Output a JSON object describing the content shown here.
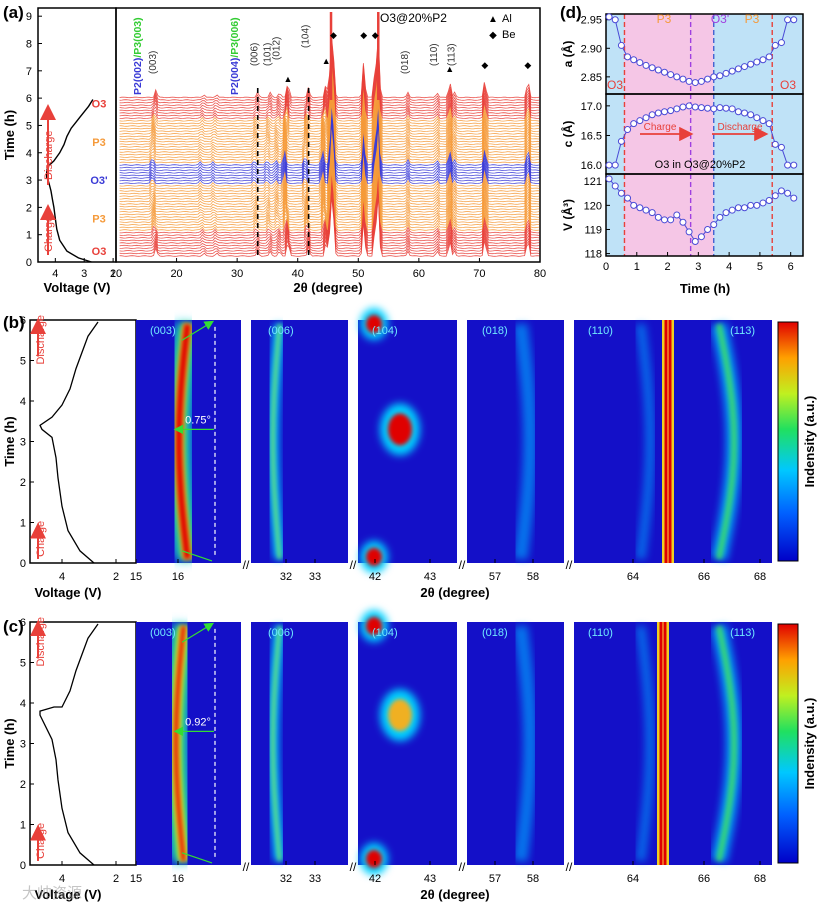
{
  "panel_labels": [
    "(a)",
    "(b)",
    "(c)",
    "(d)"
  ],
  "watermark": "大帅资源",
  "colors": {
    "red": "#e8403a",
    "orange": "#f59a3a",
    "blue": "#3a3ad6",
    "green": "#33cc33",
    "pink": "#f5c6e6",
    "sky": "#bfe2f7",
    "point": "#4a4ad6"
  },
  "chart_data": [
    {
      "id": "a_voltage",
      "type": "line",
      "xlabel": "Voltage (V)",
      "ylabel": "Time (h)",
      "xlim": [
        4.6,
        1.9
      ],
      "ylim": [
        0,
        9.3
      ],
      "x_ticks": [
        "4",
        "3",
        "2"
      ],
      "y_ticks": [
        "0",
        "1",
        "2",
        "3",
        "4",
        "5",
        "6",
        "7",
        "8",
        "9"
      ],
      "phase_labels": [
        {
          "text": "O3",
          "y": 0.4,
          "color": "red"
        },
        {
          "text": "P3",
          "y": 1.6,
          "color": "orange"
        },
        {
          "text": "O3'",
          "y": 3.0,
          "color": "blue"
        },
        {
          "text": "P3",
          "y": 4.4,
          "color": "orange"
        },
        {
          "text": "O3",
          "y": 5.8,
          "color": "red"
        }
      ],
      "arrow_labels": [
        "Charge",
        "Discharge"
      ],
      "x": [
        2.75,
        3.2,
        3.6,
        3.85,
        3.95,
        4.0,
        4.05,
        4.1,
        4.15,
        4.2,
        4.25,
        4.3,
        4.3,
        4.28,
        4.25,
        4.05,
        3.85,
        3.7,
        3.6,
        3.45,
        3.3,
        3.15,
        3.0,
        2.85,
        2.7
      ],
      "y": [
        0.0,
        0.15,
        0.4,
        0.8,
        1.2,
        1.6,
        2.0,
        2.3,
        2.6,
        2.8,
        3.0,
        3.1,
        3.3,
        3.4,
        3.5,
        3.7,
        4.0,
        4.3,
        4.6,
        4.9,
        5.1,
        5.3,
        5.5,
        5.7,
        5.95
      ]
    },
    {
      "id": "a_xrd",
      "type": "line",
      "title": "O3@20%P2",
      "xlabel": "2θ (degree)",
      "xlim": [
        10,
        80
      ],
      "x_ticks": [
        "10",
        "20",
        "30",
        "40",
        "50",
        "60",
        "70",
        "80"
      ],
      "legend": [
        {
          "symbol": "▲",
          "label": "Al"
        },
        {
          "symbol": "◆",
          "label": "Be"
        }
      ],
      "series_count": 62,
      "color_bands": [
        {
          "from": 0,
          "to": 0.9,
          "color": "red"
        },
        {
          "from": 0.9,
          "to": 2.7,
          "color": "orange"
        },
        {
          "from": 2.7,
          "to": 3.5,
          "color": "blue"
        },
        {
          "from": 3.5,
          "to": 5.2,
          "color": "orange"
        },
        {
          "from": 5.2,
          "to": 6.0,
          "color": "red"
        }
      ],
      "reflections": [
        {
          "label": "(003)",
          "two_theta": 16.6
        },
        {
          "label": "(006)",
          "two_theta": 33.4
        },
        {
          "label": "(101)",
          "two_theta": 35.5
        },
        {
          "label": "(012)",
          "two_theta": 37.0
        },
        {
          "label": "(104)",
          "two_theta": 41.8
        },
        {
          "label": "(018)",
          "two_theta": 58.2
        },
        {
          "label": "(110)",
          "two_theta": 63.0
        },
        {
          "label": "(113)",
          "two_theta": 65.9
        }
      ],
      "p2_labels": [
        {
          "blue": "P2(002)",
          "green": "/P3(003)",
          "two_theta": 15.8
        },
        {
          "blue": "P2(004)",
          "green": "/P3(006)",
          "two_theta": 31.8
        }
      ],
      "al_peaks": [
        38.4,
        44.7,
        65.1
      ],
      "be_peaks": [
        45.9,
        50.9,
        52.8,
        70.9,
        78.0
      ]
    },
    {
      "id": "d_lattice",
      "type": "scatter",
      "xlabel": "Time (h)",
      "x_ticks": [
        "0",
        "1",
        "2",
        "3",
        "4",
        "5",
        "6"
      ],
      "xlim": [
        0,
        6.4
      ],
      "subtitle": "O3 in O3@20%P2",
      "phase_labels": [
        "O3",
        "P3",
        "O3'",
        "P3",
        "O3"
      ],
      "phase_bounds": [
        0.6,
        2.75,
        3.5,
        5.4
      ],
      "arrows": [
        "Charge",
        "Discharge"
      ],
      "time": [
        0.1,
        0.3,
        0.5,
        0.7,
        0.9,
        1.1,
        1.3,
        1.5,
        1.7,
        1.9,
        2.1,
        2.3,
        2.5,
        2.7,
        2.9,
        3.1,
        3.3,
        3.5,
        3.7,
        3.9,
        4.1,
        4.3,
        4.5,
        4.7,
        4.9,
        5.1,
        5.3,
        5.5,
        5.7,
        5.9,
        6.1
      ],
      "series": [
        {
          "name": "a (Å)",
          "ylim": [
            2.82,
            2.96
          ],
          "y_ticks": [
            "2.85",
            "2.90",
            "2.95"
          ],
          "values": [
            2.955,
            2.95,
            2.905,
            2.885,
            2.88,
            2.875,
            2.87,
            2.866,
            2.862,
            2.858,
            2.854,
            2.85,
            2.846,
            2.842,
            2.84,
            2.842,
            2.846,
            2.85,
            2.852,
            2.856,
            2.86,
            2.864,
            2.868,
            2.872,
            2.876,
            2.88,
            2.885,
            2.905,
            2.91,
            2.95,
            2.95
          ]
        },
        {
          "name": "c (Å)",
          "ylim": [
            15.85,
            17.2
          ],
          "y_ticks": [
            "16.0",
            "16.5",
            "17.0"
          ],
          "values": [
            16.0,
            16.0,
            16.4,
            16.6,
            16.7,
            16.75,
            16.8,
            16.85,
            16.88,
            16.9,
            16.92,
            16.95,
            16.98,
            17.0,
            16.98,
            16.97,
            16.96,
            16.95,
            16.97,
            16.96,
            16.95,
            16.9,
            16.88,
            16.85,
            16.8,
            16.75,
            16.7,
            16.35,
            16.3,
            16.0,
            16.0
          ]
        },
        {
          "name": "V (Å³)",
          "ylim": [
            117.9,
            121.3
          ],
          "y_ticks": [
            "118",
            "119",
            "120",
            "121"
          ],
          "values": [
            121.1,
            120.8,
            120.5,
            120.3,
            120.0,
            119.9,
            119.8,
            119.7,
            119.5,
            119.4,
            119.4,
            119.6,
            119.3,
            118.9,
            118.5,
            118.7,
            119.0,
            119.2,
            119.5,
            119.7,
            119.8,
            119.9,
            119.9,
            120.0,
            120.0,
            120.1,
            120.2,
            120.4,
            120.6,
            120.5,
            120.3
          ]
        }
      ]
    },
    {
      "id": "b_contour",
      "type": "heatmap",
      "xlabel": "2θ (degree)",
      "ylabel": "Time (h)",
      "colorbar_label": "Indensity (a.u.)",
      "voltage_xlabel": "Voltage (V)",
      "voltage_ticks": [
        "4",
        "2"
      ],
      "y_ticks": [
        "0",
        "1",
        "2",
        "3",
        "4",
        "5",
        "6"
      ],
      "arrow_labels": [
        "Charge",
        "Discharge"
      ],
      "shift_annotation": "0.75°",
      "windows": [
        {
          "label": "(003)",
          "ticks": [
            "15",
            "16"
          ]
        },
        {
          "label": "(006)",
          "ticks": [
            "32",
            "33"
          ]
        },
        {
          "label": "(104)",
          "ticks": [
            "42",
            "43"
          ]
        },
        {
          "label": "(018)",
          "ticks": [
            "57",
            "58"
          ]
        },
        {
          "label": "(110)",
          "ticks": [
            "64",
            "66",
            "68"
          ]
        },
        {
          "label": "(113)",
          "ticks": []
        }
      ]
    },
    {
      "id": "c_contour",
      "type": "heatmap",
      "xlabel": "2θ (degree)",
      "ylabel": "Time (h)",
      "colorbar_label": "Indensity (a.u.)",
      "voltage_xlabel": "Voltage (V)",
      "voltage_ticks": [
        "4",
        "2"
      ],
      "y_ticks": [
        "0",
        "1",
        "2",
        "3",
        "4",
        "5",
        "6"
      ],
      "arrow_labels": [
        "Charge",
        "Discharge"
      ],
      "shift_annotation": "0.92°",
      "windows": [
        {
          "label": "(003)",
          "ticks": [
            "15",
            "16"
          ]
        },
        {
          "label": "(006)",
          "ticks": [
            "32",
            "33"
          ]
        },
        {
          "label": "(104)",
          "ticks": [
            "42",
            "43"
          ]
        },
        {
          "label": "(018)",
          "ticks": [
            "57",
            "58"
          ]
        },
        {
          "label": "(110)",
          "ticks": [
            "64",
            "66",
            "68"
          ]
        },
        {
          "label": "(113)",
          "ticks": []
        }
      ]
    }
  ]
}
